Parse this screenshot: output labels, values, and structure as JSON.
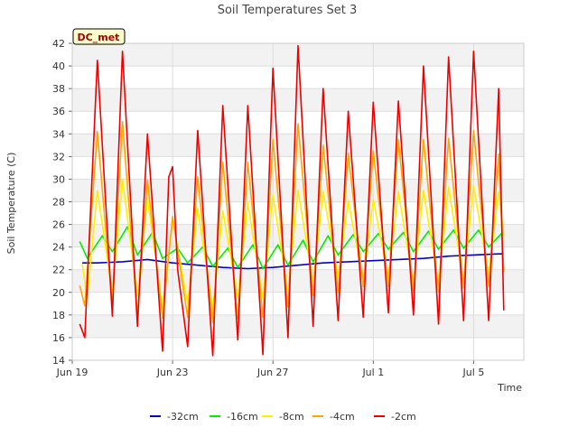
{
  "chart_data": {
    "type": "line",
    "title": "Soil Temperatures Set 3",
    "xlabel": "Time",
    "ylabel": "Soil Temperature (C)",
    "badge": "DC_met",
    "x_unit": "days since Jun 19",
    "xlim": [
      0,
      18
    ],
    "ylim": [
      14,
      42
    ],
    "x_ticks": [
      {
        "x": 0,
        "label": "Jun 19"
      },
      {
        "x": 4,
        "label": "Jun 23"
      },
      {
        "x": 8,
        "label": "Jun 27"
      },
      {
        "x": 12,
        "label": "Jul 1"
      },
      {
        "x": 16,
        "label": "Jul 5"
      }
    ],
    "y_ticks": [
      14,
      16,
      18,
      20,
      22,
      24,
      26,
      28,
      30,
      32,
      34,
      36,
      38,
      40,
      42
    ],
    "grid": true,
    "legend_position": "bottom",
    "series": [
      {
        "name": "-32cm",
        "color": "#0000cc",
        "x": [
          0.4,
          1,
          2,
          3,
          4,
          5,
          6,
          7,
          8,
          9,
          10,
          11,
          12,
          13,
          14,
          15,
          16,
          17,
          17.2
        ],
        "values": [
          22.6,
          22.6,
          22.7,
          22.9,
          22.6,
          22.4,
          22.2,
          22.1,
          22.2,
          22.4,
          22.6,
          22.7,
          22.8,
          22.9,
          23.0,
          23.2,
          23.3,
          23.4,
          23.4
        ]
      },
      {
        "name": "-16cm",
        "color": "#00ee00",
        "x": [
          0.3,
          0.6,
          1.2,
          1.6,
          2.2,
          2.6,
          3.2,
          3.6,
          4.2,
          4.6,
          5.2,
          5.6,
          6.2,
          6.6,
          7.2,
          7.6,
          8.2,
          8.6,
          9.2,
          9.6,
          10.2,
          10.6,
          11.2,
          11.6,
          12.2,
          12.6,
          13.2,
          13.6,
          14.2,
          14.6,
          15.2,
          15.6,
          16.2,
          16.6,
          17.2
        ],
        "values": [
          24.5,
          23.0,
          25.0,
          23.6,
          25.8,
          23.3,
          25.3,
          23.0,
          23.9,
          22.6,
          24.0,
          22.3,
          23.9,
          22.2,
          24.2,
          22.1,
          24.2,
          22.4,
          24.6,
          22.7,
          25.0,
          23.3,
          25.1,
          23.6,
          25.2,
          23.8,
          25.3,
          23.6,
          25.4,
          23.8,
          25.5,
          23.9,
          25.5,
          24.0,
          25.4
        ]
      },
      {
        "name": "-8cm",
        "color": "#ffee00",
        "x": [
          0.4,
          0.6,
          1.0,
          1.6,
          2.0,
          2.6,
          3.0,
          3.6,
          4.0,
          4.6,
          5.0,
          5.6,
          6.0,
          6.6,
          7.0,
          7.6,
          8.0,
          8.6,
          9.0,
          9.6,
          10.0,
          10.6,
          11.0,
          11.6,
          12.0,
          12.6,
          13.0,
          13.6,
          14.0,
          14.6,
          15.0,
          15.6,
          16.0,
          16.6,
          17.0,
          17.2
        ],
        "values": [
          22.5,
          19.5,
          29.0,
          20.0,
          30.0,
          19.7,
          28.3,
          18.6,
          26.5,
          19.0,
          27.4,
          18.5,
          27.2,
          19.5,
          27.9,
          19.4,
          28.6,
          20.0,
          29.0,
          20.9,
          28.9,
          21.4,
          28.1,
          21.0,
          28.2,
          21.3,
          28.9,
          20.7,
          29.0,
          20.7,
          29.3,
          21.0,
          29.4,
          21.6,
          28.9,
          25.0
        ]
      },
      {
        "name": "-4cm",
        "color": "#ffa500",
        "x": [
          0.3,
          0.5,
          1.0,
          1.6,
          2.0,
          2.6,
          3.0,
          3.6,
          4.0,
          4.6,
          5.0,
          5.6,
          6.0,
          6.6,
          7.0,
          7.6,
          8.0,
          8.6,
          9.0,
          9.6,
          10.0,
          10.6,
          11.0,
          11.6,
          12.0,
          12.6,
          13.0,
          13.6,
          14.0,
          14.6,
          15.0,
          15.6,
          16.0,
          16.6,
          17.0,
          17.2
        ],
        "values": [
          20.6,
          18.8,
          34.2,
          18.7,
          35.1,
          18.0,
          29.9,
          17.7,
          26.7,
          17.8,
          30.2,
          17.3,
          31.5,
          17.7,
          31.5,
          17.8,
          33.5,
          18.7,
          34.9,
          19.7,
          33.0,
          20.0,
          32.3,
          20.5,
          32.5,
          20.5,
          33.5,
          20.0,
          33.5,
          20.0,
          33.6,
          20.4,
          34.3,
          20.5,
          32.2,
          21.8
        ]
      },
      {
        "name": "-2cm",
        "color": "#ee0000",
        "x": [
          0.3,
          0.5,
          1.0,
          1.6,
          2.0,
          2.6,
          3.0,
          3.6,
          3.85,
          4.0,
          4.2,
          4.6,
          5.0,
          5.6,
          6.0,
          6.6,
          7.0,
          7.6,
          8.0,
          8.6,
          9.0,
          9.6,
          10.0,
          10.6,
          11.0,
          11.6,
          12.0,
          12.6,
          13.0,
          13.6,
          14.0,
          14.6,
          15.0,
          15.6,
          16.0,
          16.6,
          17.0,
          17.2
        ],
        "values": [
          17.2,
          16.0,
          40.5,
          17.9,
          41.3,
          17.0,
          34.0,
          14.8,
          30.2,
          31.1,
          22.0,
          15.2,
          34.3,
          14.4,
          36.5,
          15.8,
          36.5,
          14.5,
          39.8,
          16.0,
          41.8,
          17.0,
          38.0,
          17.5,
          36.0,
          17.8,
          36.8,
          18.2,
          36.9,
          18.0,
          40.0,
          17.2,
          40.8,
          17.5,
          41.3,
          17.5,
          38.0,
          18.4
        ]
      }
    ]
  }
}
